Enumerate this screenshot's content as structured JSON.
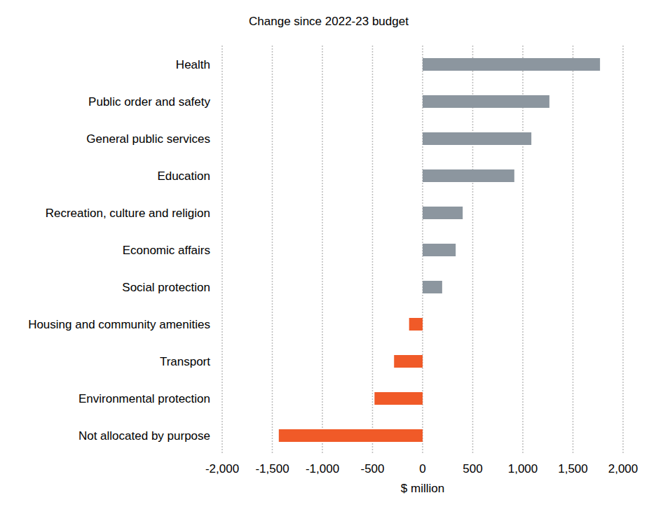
{
  "chart_data": {
    "type": "bar",
    "orientation": "horizontal",
    "title": "Change since 2022-23 budget",
    "xlabel": "$ million",
    "categories": [
      "Health",
      "Public order and safety",
      "General public services",
      "Education",
      "Recreation, culture and religion",
      "Economic affairs",
      "Social protection",
      "Housing and community amenities",
      "Transport",
      "Environmental protection",
      "Not allocated by purpose"
    ],
    "values": [
      1770,
      1265,
      1085,
      915,
      400,
      330,
      195,
      -135,
      -285,
      -480,
      -1435
    ],
    "colors": [
      "#8c969f",
      "#8c969f",
      "#8c969f",
      "#8c969f",
      "#8c969f",
      "#8c969f",
      "#8c969f",
      "#f05a28",
      "#f05a28",
      "#f05a28",
      "#f05a28"
    ],
    "xlim": [
      -2000,
      2000
    ],
    "xticks": [
      {
        "value": -2000,
        "label": "-2,000"
      },
      {
        "value": -1500,
        "label": "-1,500"
      },
      {
        "value": -1000,
        "label": "-1,000"
      },
      -500,
      0,
      500,
      {
        "value": 1000,
        "label": "1,000"
      },
      {
        "value": 1500,
        "label": "1,500"
      },
      {
        "value": 2000,
        "label": "2,000"
      }
    ],
    "grid": true
  }
}
